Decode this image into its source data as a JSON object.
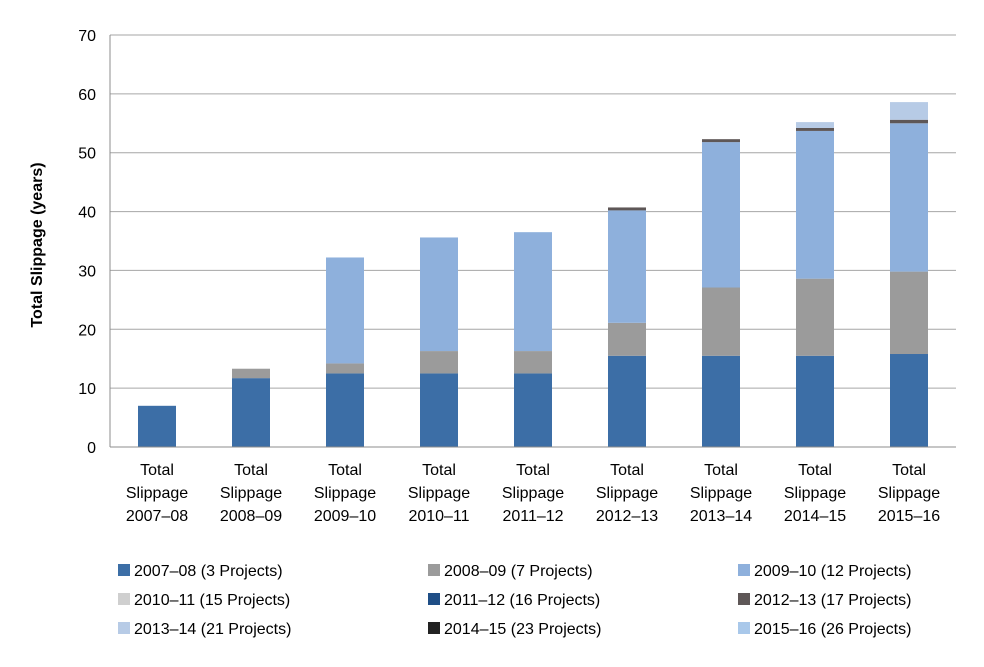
{
  "chart_data": {
    "type": "bar",
    "stacked": true,
    "ylabel": "Total Slippage (years)",
    "ylim": [
      0,
      70
    ],
    "yticks": [
      0,
      10,
      20,
      30,
      40,
      50,
      60,
      70
    ],
    "grid": true,
    "legend_position": "bottom",
    "categories": [
      [
        "Total",
        "Slippage",
        "2007–08"
      ],
      [
        "Total",
        "Slippage",
        "2008–09"
      ],
      [
        "Total",
        "Slippage",
        "2009–10"
      ],
      [
        "Total",
        "Slippage",
        "2010–11"
      ],
      [
        "Total",
        "Slippage",
        "2011–12"
      ],
      [
        "Total",
        "Slippage",
        "2012–13"
      ],
      [
        "Total",
        "Slippage",
        "2013–14"
      ],
      [
        "Total",
        "Slippage",
        "2014–15"
      ],
      [
        "Total",
        "Slippage",
        "2015–16"
      ]
    ],
    "series": [
      {
        "name": "2007–08 (3 Projects)",
        "color": "#3c6ea6",
        "values": [
          7.0,
          11.7,
          12.5,
          12.5,
          12.5,
          15.5,
          15.5,
          15.5,
          15.8
        ]
      },
      {
        "name": "2008–09 (7 Projects)",
        "color": "#9b9b9b",
        "values": [
          0,
          1.6,
          1.7,
          3.8,
          3.8,
          5.6,
          11.6,
          13.1,
          14.0
        ]
      },
      {
        "name": "2009–10 (12 Projects)",
        "color": "#8eb0dc",
        "values": [
          0,
          0,
          18.0,
          19.3,
          20.2,
          19.1,
          24.7,
          25.1,
          25.2
        ]
      },
      {
        "name": "2010–11 (15 Projects)",
        "color": "#cfcfcf",
        "values": [
          0,
          0,
          0,
          0,
          0,
          0,
          0,
          0,
          0
        ]
      },
      {
        "name": "2011–12 (16 Projects)",
        "color": "#1f4e86",
        "values": [
          0,
          0,
          0,
          0,
          0,
          0,
          0,
          0,
          0
        ]
      },
      {
        "name": "2012–13 (17 Projects)",
        "color": "#5e5757",
        "values": [
          0,
          0,
          0,
          0,
          0,
          0.5,
          0.5,
          0.5,
          0.6
        ]
      },
      {
        "name": "2013–14 (21 Projects)",
        "color": "#b7cbe6",
        "values": [
          0,
          0,
          0,
          0,
          0,
          0,
          0,
          1.0,
          3.0
        ]
      },
      {
        "name": "2014–15 (23 Projects)",
        "color": "#222222",
        "values": [
          0,
          0,
          0,
          0,
          0,
          0,
          0,
          0,
          0
        ]
      },
      {
        "name": "2015–16 (26 Projects)",
        "color": "#a9c8ea",
        "values": [
          0,
          0,
          0,
          0,
          0,
          0,
          0,
          0,
          0
        ]
      }
    ]
  }
}
